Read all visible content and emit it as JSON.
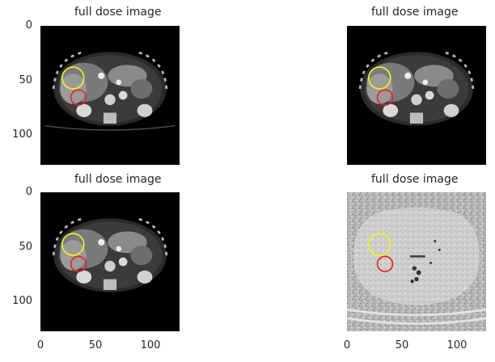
{
  "figure": {
    "panels": [
      {
        "title": "full dose image",
        "variant": "ct-standard"
      },
      {
        "title": "full dose image",
        "variant": "ct-standard"
      },
      {
        "title": "full dose image",
        "variant": "ct-standard"
      },
      {
        "title": "full dose image",
        "variant": "ct-noisy"
      }
    ],
    "y_ticks": [
      "0",
      "50",
      "100"
    ],
    "x_ticks": [
      "0",
      "50",
      "100"
    ],
    "markers": {
      "yellow_circle_color": "#f2f22a",
      "red_circle_color": "#e8201e"
    }
  }
}
